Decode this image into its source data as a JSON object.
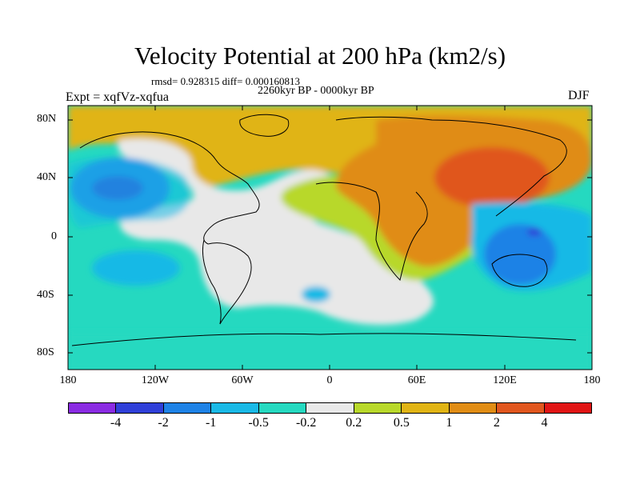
{
  "title": "Velocity Potential at 200 hPa (km2/s)",
  "stats": "rmsd= 0.928315 diff= 0.000160813",
  "period": "2260kyr BP - 0000kyr BP",
  "experiment": "Expt = xqfVz-xqfua",
  "season": "DJF",
  "lat_labels": [
    "80N",
    "40N",
    "0",
    "40S",
    "80S"
  ],
  "lon_labels": [
    "180",
    "120W",
    "60W",
    "0",
    "60E",
    "120E",
    "180"
  ],
  "colorbar": {
    "colors": [
      "#8a2be2",
      "#2f3fd8",
      "#1e82e6",
      "#19b9e6",
      "#25d9c0",
      "#e8e8e8",
      "#b8d82a",
      "#e0b414",
      "#e08c14",
      "#e0561e",
      "#e01414"
    ],
    "labels": [
      "-4",
      "-2",
      "-1",
      "-0.5",
      "-0.2",
      "0.2",
      "0.5",
      "1",
      "2",
      "4"
    ]
  }
}
